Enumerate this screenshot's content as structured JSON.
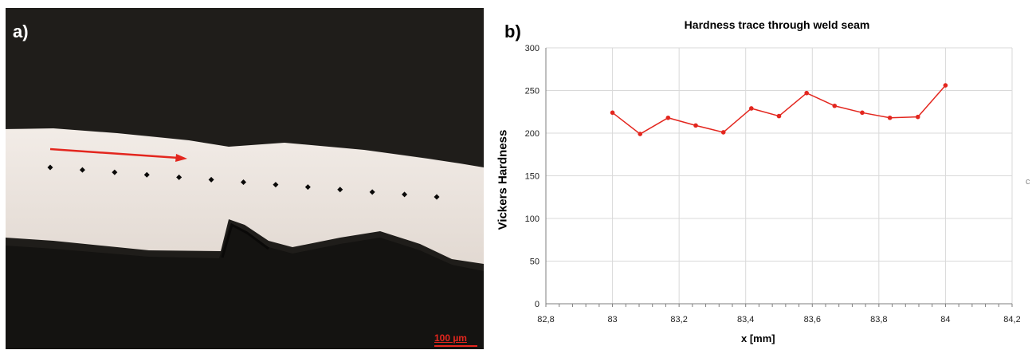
{
  "panel_a": {
    "label": "a)",
    "scale_bar": "100 µm",
    "indent_count": 13
  },
  "panel_b": {
    "label": "b)"
  },
  "edge_mark": "c",
  "colors": {
    "series": "#e3261e",
    "arrow": "#e3261e",
    "gridline": "#d9d9d9",
    "metal": "#ece5df",
    "background": "#1c1a17"
  },
  "chart_data": {
    "type": "line",
    "title": "Hardness trace through weld seam",
    "xlabel": "x [mm]",
    "ylabel": "Vickers Hardness",
    "xlim": [
      82.8,
      84.2
    ],
    "ylim": [
      0,
      300
    ],
    "xticks": [
      "82,8",
      "83",
      "83,2",
      "83,4",
      "83,6",
      "83,8",
      "84",
      "84,2"
    ],
    "yticks": [
      "0",
      "50",
      "100",
      "150",
      "200",
      "250",
      "300"
    ],
    "grid": true,
    "series": [
      {
        "x": [
          83.0,
          83.083,
          83.167,
          83.25,
          83.333,
          83.417,
          83.5,
          83.583,
          83.667,
          83.75,
          83.833,
          83.917,
          84.0
        ],
        "y": [
          224,
          199,
          218,
          209,
          201,
          229,
          220,
          247,
          232,
          224,
          218,
          219,
          256
        ]
      }
    ]
  }
}
